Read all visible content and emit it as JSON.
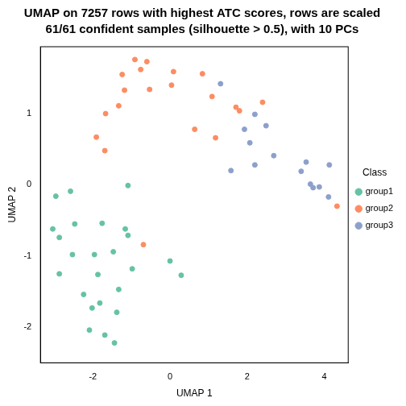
{
  "chart_data": {
    "type": "scatter",
    "title": "UMAP on 7257 rows with highest ATC scores, rows are scaled",
    "subtitle": "61/61 confident samples (silhouette > 0.5), with 10 PCs",
    "x_label": "UMAP 1",
    "y_label": "UMAP 2",
    "legend_title": "Class",
    "legend": "right",
    "grid": false,
    "marker": "circle",
    "xlim": [
      -3.36,
      4.62
    ],
    "xticks": [
      -2,
      0,
      2,
      4
    ],
    "ylim": [
      -2.5,
      1.94
    ],
    "yticks": [
      -2,
      -1,
      0,
      1
    ],
    "series": [
      {
        "name": "group1",
        "color": "#66C2A5",
        "x": [
          -2.96,
          -2.58,
          -1.09,
          -3.04,
          -2.87,
          -2.47,
          -1.76,
          -1.16,
          -1.09,
          -2.53,
          -1.96,
          -1.47,
          -2.87,
          -1.87,
          -0.98,
          0,
          0.29,
          -1.33,
          -2.24,
          -1.82,
          -2.02,
          -1.38,
          -2.09,
          -1.69,
          -1.44
        ],
        "values": [
          -0.16,
          -0.09,
          -0.01,
          -0.62,
          -0.74,
          -0.55,
          -0.54,
          -0.62,
          -0.71,
          -0.98,
          -0.98,
          -0.94,
          -1.25,
          -1.26,
          -1.18,
          -1.07,
          -1.27,
          -1.47,
          -1.54,
          -1.66,
          -1.73,
          -1.79,
          -2.04,
          -2.11,
          -2.22
        ]
      },
      {
        "name": "group2",
        "color": "#FC8D62",
        "x": [
          -0.91,
          -0.6,
          -0.76,
          -1.24,
          0.09,
          0.04,
          -0.53,
          -1.18,
          0.84,
          1.09,
          -1.33,
          -1.67,
          1.71,
          1.8,
          2.4,
          -1.91,
          -1.69,
          0.64,
          1.18,
          -0.69,
          4.33
        ],
        "values": [
          1.76,
          1.73,
          1.62,
          1.55,
          1.59,
          1.4,
          1.34,
          1.33,
          1.56,
          1.24,
          1.11,
          1.0,
          1.09,
          1.04,
          1.16,
          0.67,
          0.48,
          0.78,
          0.66,
          -0.84,
          -0.3
        ]
      },
      {
        "name": "group3",
        "color": "#8DA0CB",
        "x": [
          1.31,
          2.2,
          2.49,
          1.93,
          2.07,
          2.69,
          2.2,
          1.58,
          3.53,
          3.4,
          4.13,
          3.64,
          3.71,
          3.87,
          4.11
        ],
        "values": [
          1.42,
          0.99,
          0.83,
          0.78,
          0.59,
          0.41,
          0.28,
          0.2,
          0.32,
          0.19,
          0.28,
          0.01,
          -0.04,
          -0.03,
          -0.17
        ]
      }
    ]
  }
}
